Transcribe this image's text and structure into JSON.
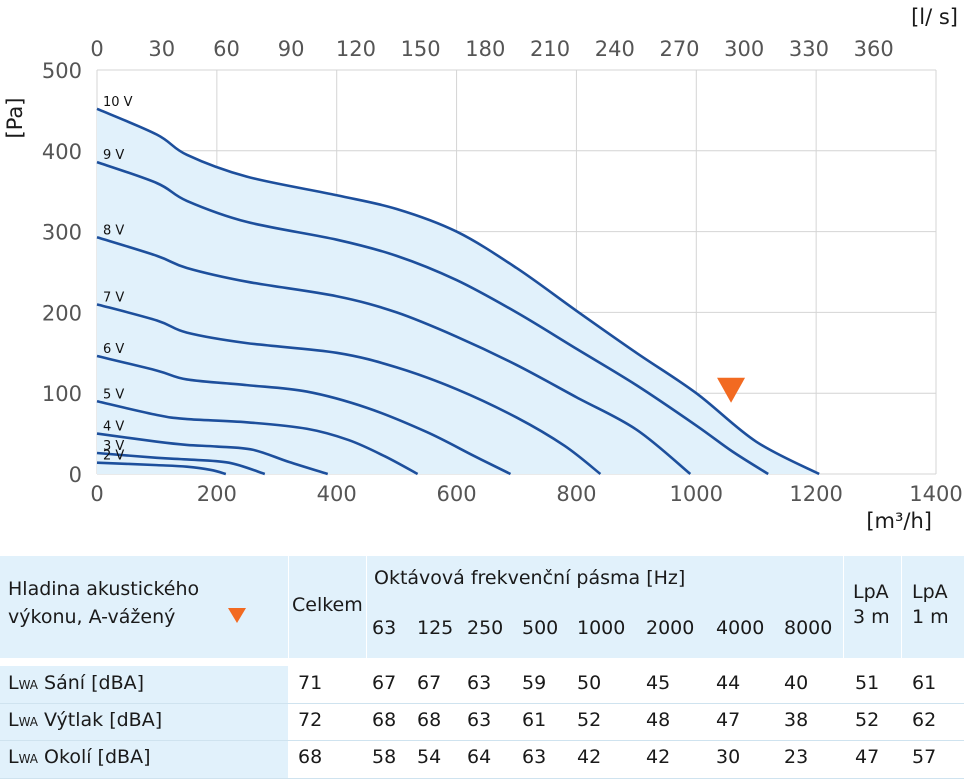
{
  "chart_data": {
    "type": "line",
    "x_unit_bottom": "[m³/h]",
    "x_unit_top": "[l/ s]",
    "y_unit": "[Pa]",
    "xlim": [
      0,
      1400
    ],
    "ylim": [
      0,
      500
    ],
    "x_ticks": [
      "0",
      "200",
      "400",
      "600",
      "800",
      "1000",
      "1200",
      "1400"
    ],
    "x_top_ticks": [
      "0",
      "30",
      "60",
      "90",
      "120",
      "150",
      "180",
      "210",
      "240",
      "270",
      "300",
      "330",
      "360"
    ],
    "y_ticks": [
      "0",
      "100",
      "200",
      "300",
      "400",
      "500"
    ],
    "grid": true,
    "marker": {
      "x": 1058,
      "y": 103,
      "color": "#f26a21"
    },
    "series": [
      {
        "name": "10 V",
        "points": [
          [
            0,
            452
          ],
          [
            100,
            420
          ],
          [
            150,
            395
          ],
          [
            250,
            368
          ],
          [
            400,
            345
          ],
          [
            500,
            328
          ],
          [
            600,
            300
          ],
          [
            700,
            255
          ],
          [
            800,
            202
          ],
          [
            900,
            150
          ],
          [
            1000,
            100
          ],
          [
            1100,
            40
          ],
          [
            1205,
            0
          ]
        ]
      },
      {
        "name": "9 V",
        "points": [
          [
            0,
            386
          ],
          [
            100,
            360
          ],
          [
            150,
            338
          ],
          [
            250,
            312
          ],
          [
            400,
            290
          ],
          [
            500,
            270
          ],
          [
            600,
            240
          ],
          [
            700,
            200
          ],
          [
            800,
            155
          ],
          [
            900,
            110
          ],
          [
            1000,
            60
          ],
          [
            1060,
            28
          ],
          [
            1120,
            0
          ]
        ]
      },
      {
        "name": "8 V",
        "points": [
          [
            0,
            293
          ],
          [
            100,
            270
          ],
          [
            150,
            255
          ],
          [
            250,
            238
          ],
          [
            400,
            220
          ],
          [
            500,
            200
          ],
          [
            600,
            170
          ],
          [
            700,
            135
          ],
          [
            800,
            95
          ],
          [
            900,
            55
          ],
          [
            990,
            0
          ]
        ]
      },
      {
        "name": "7 V",
        "points": [
          [
            0,
            210
          ],
          [
            100,
            190
          ],
          [
            150,
            175
          ],
          [
            250,
            162
          ],
          [
            400,
            150
          ],
          [
            500,
            132
          ],
          [
            600,
            105
          ],
          [
            700,
            70
          ],
          [
            780,
            35
          ],
          [
            840,
            0
          ]
        ]
      },
      {
        "name": "6 V",
        "points": [
          [
            0,
            146
          ],
          [
            100,
            128
          ],
          [
            150,
            117
          ],
          [
            250,
            110
          ],
          [
            350,
            102
          ],
          [
            450,
            82
          ],
          [
            550,
            52
          ],
          [
            630,
            22
          ],
          [
            690,
            0
          ]
        ]
      },
      {
        "name": "5 V",
        "points": [
          [
            0,
            90
          ],
          [
            100,
            73
          ],
          [
            150,
            68
          ],
          [
            250,
            64
          ],
          [
            350,
            56
          ],
          [
            420,
            42
          ],
          [
            480,
            22
          ],
          [
            535,
            0
          ]
        ]
      },
      {
        "name": "4 V",
        "points": [
          [
            0,
            50
          ],
          [
            100,
            40
          ],
          [
            150,
            36
          ],
          [
            200,
            34
          ],
          [
            260,
            30
          ],
          [
            320,
            15
          ],
          [
            385,
            0
          ]
        ]
      },
      {
        "name": "3 V",
        "points": [
          [
            0,
            26
          ],
          [
            100,
            20
          ],
          [
            150,
            18
          ],
          [
            220,
            14
          ],
          [
            280,
            0
          ]
        ]
      },
      {
        "name": "2 V",
        "points": [
          [
            0,
            14
          ],
          [
            100,
            11
          ],
          [
            150,
            9
          ],
          [
            190,
            5
          ],
          [
            215,
            0
          ]
        ]
      }
    ]
  },
  "table": {
    "title_line1": "Hladina akustického",
    "title_line2": "výkonu, A-vážený",
    "celkem": "Celkem",
    "octave_title": "Oktávová frekvenční pásma [Hz]",
    "frequencies": [
      "63",
      "125",
      "250",
      "500",
      "1000",
      "2000",
      "4000",
      "8000"
    ],
    "lpa3_l1": "LpA",
    "lpa3_l2": "3 m",
    "lpa1_l1": "LpA",
    "lpa1_l2": "1 m",
    "rows": [
      {
        "prefix": "L",
        "sub": "WA",
        "label": "Sání [dBA]",
        "celkem": "71",
        "bands": [
          "67",
          "67",
          "63",
          "59",
          "50",
          "45",
          "44",
          "40"
        ],
        "lpa3": "51",
        "lpa1": "61"
      },
      {
        "prefix": "L",
        "sub": "WA",
        "label": "Výtlak [dBA]",
        "celkem": "72",
        "bands": [
          "68",
          "68",
          "63",
          "61",
          "52",
          "48",
          "47",
          "38"
        ],
        "lpa3": "52",
        "lpa1": "62"
      },
      {
        "prefix": "L",
        "sub": "WA",
        "label": "Okolí [dBA]",
        "celkem": "68",
        "bands": [
          "58",
          "54",
          "64",
          "63",
          "42",
          "42",
          "30",
          "23"
        ],
        "lpa3": "47",
        "lpa1": "57"
      }
    ]
  }
}
